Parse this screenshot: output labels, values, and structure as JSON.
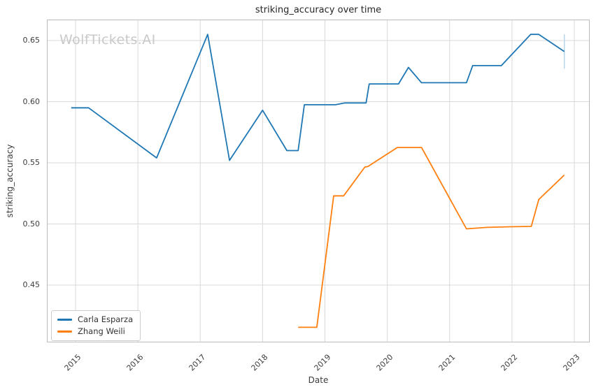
{
  "watermark": "WolfTickets.AI",
  "chart_data": {
    "type": "line",
    "title": "striking_accuracy over time",
    "xlabel": "Date",
    "ylabel": "striking_accuracy",
    "x_unit": "decimal_year",
    "xlim": [
      2014.54,
      2023.25
    ],
    "ylim": [
      0.403,
      0.667
    ],
    "grid": true,
    "legend_position": "lower left",
    "background": "#ffffff",
    "grid_color": "#d9d9d9",
    "spine_color": "#bcbcbc",
    "yticks": [
      0.45,
      0.5,
      0.55,
      0.6,
      0.65
    ],
    "ytick_labels": [
      "0.45",
      "0.50",
      "0.55",
      "0.60",
      "0.65"
    ],
    "xticks": [
      2015,
      2016,
      2017,
      2018,
      2019,
      2020,
      2021,
      2022,
      2023
    ],
    "xtick_labels": [
      "2015",
      "2016",
      "2017",
      "2018",
      "2019",
      "2020",
      "2021",
      "2022",
      "2023"
    ],
    "series": [
      {
        "name": "Carla Esparza",
        "color": "#1f77b4",
        "points": [
          [
            2014.93,
            0.595
          ],
          [
            2015.21,
            0.595
          ],
          [
            2016.3,
            0.554
          ],
          [
            2017.12,
            0.655
          ],
          [
            2017.47,
            0.552
          ],
          [
            2018.0,
            0.593
          ],
          [
            2018.39,
            0.56
          ],
          [
            2018.57,
            0.56
          ],
          [
            2018.67,
            0.5975
          ],
          [
            2019.17,
            0.5975
          ],
          [
            2019.32,
            0.599
          ],
          [
            2019.66,
            0.599
          ],
          [
            2019.71,
            0.6145
          ],
          [
            2020.18,
            0.6145
          ],
          [
            2020.34,
            0.628
          ],
          [
            2020.55,
            0.6155
          ],
          [
            2021.27,
            0.6155
          ],
          [
            2021.37,
            0.6295
          ],
          [
            2021.83,
            0.6295
          ],
          [
            2022.3,
            0.655
          ],
          [
            2022.43,
            0.655
          ],
          [
            2022.84,
            0.641
          ]
        ]
      },
      {
        "name": "Zhang Weili",
        "color": "#ff7f0e",
        "points": [
          [
            2018.57,
            0.4155
          ],
          [
            2018.87,
            0.4155
          ],
          [
            2019.14,
            0.523
          ],
          [
            2019.3,
            0.523
          ],
          [
            2019.64,
            0.5465
          ],
          [
            2019.69,
            0.547
          ],
          [
            2020.16,
            0.5625
          ],
          [
            2020.55,
            0.5625
          ],
          [
            2021.27,
            0.496
          ],
          [
            2021.6,
            0.4972
          ],
          [
            2021.98,
            0.4977
          ],
          [
            2022.31,
            0.498
          ],
          [
            2022.43,
            0.52
          ],
          [
            2022.84,
            0.54
          ]
        ]
      }
    ],
    "error_bar": {
      "series": "Carla Esparza",
      "x": 2022.84,
      "y_min": 0.627,
      "y_max": 0.655,
      "color": "#b8d7ec"
    }
  },
  "legend": {
    "items": [
      {
        "label": "Carla Esparza",
        "color": "#1f77b4"
      },
      {
        "label": "Zhang Weili",
        "color": "#ff7f0e"
      }
    ]
  }
}
